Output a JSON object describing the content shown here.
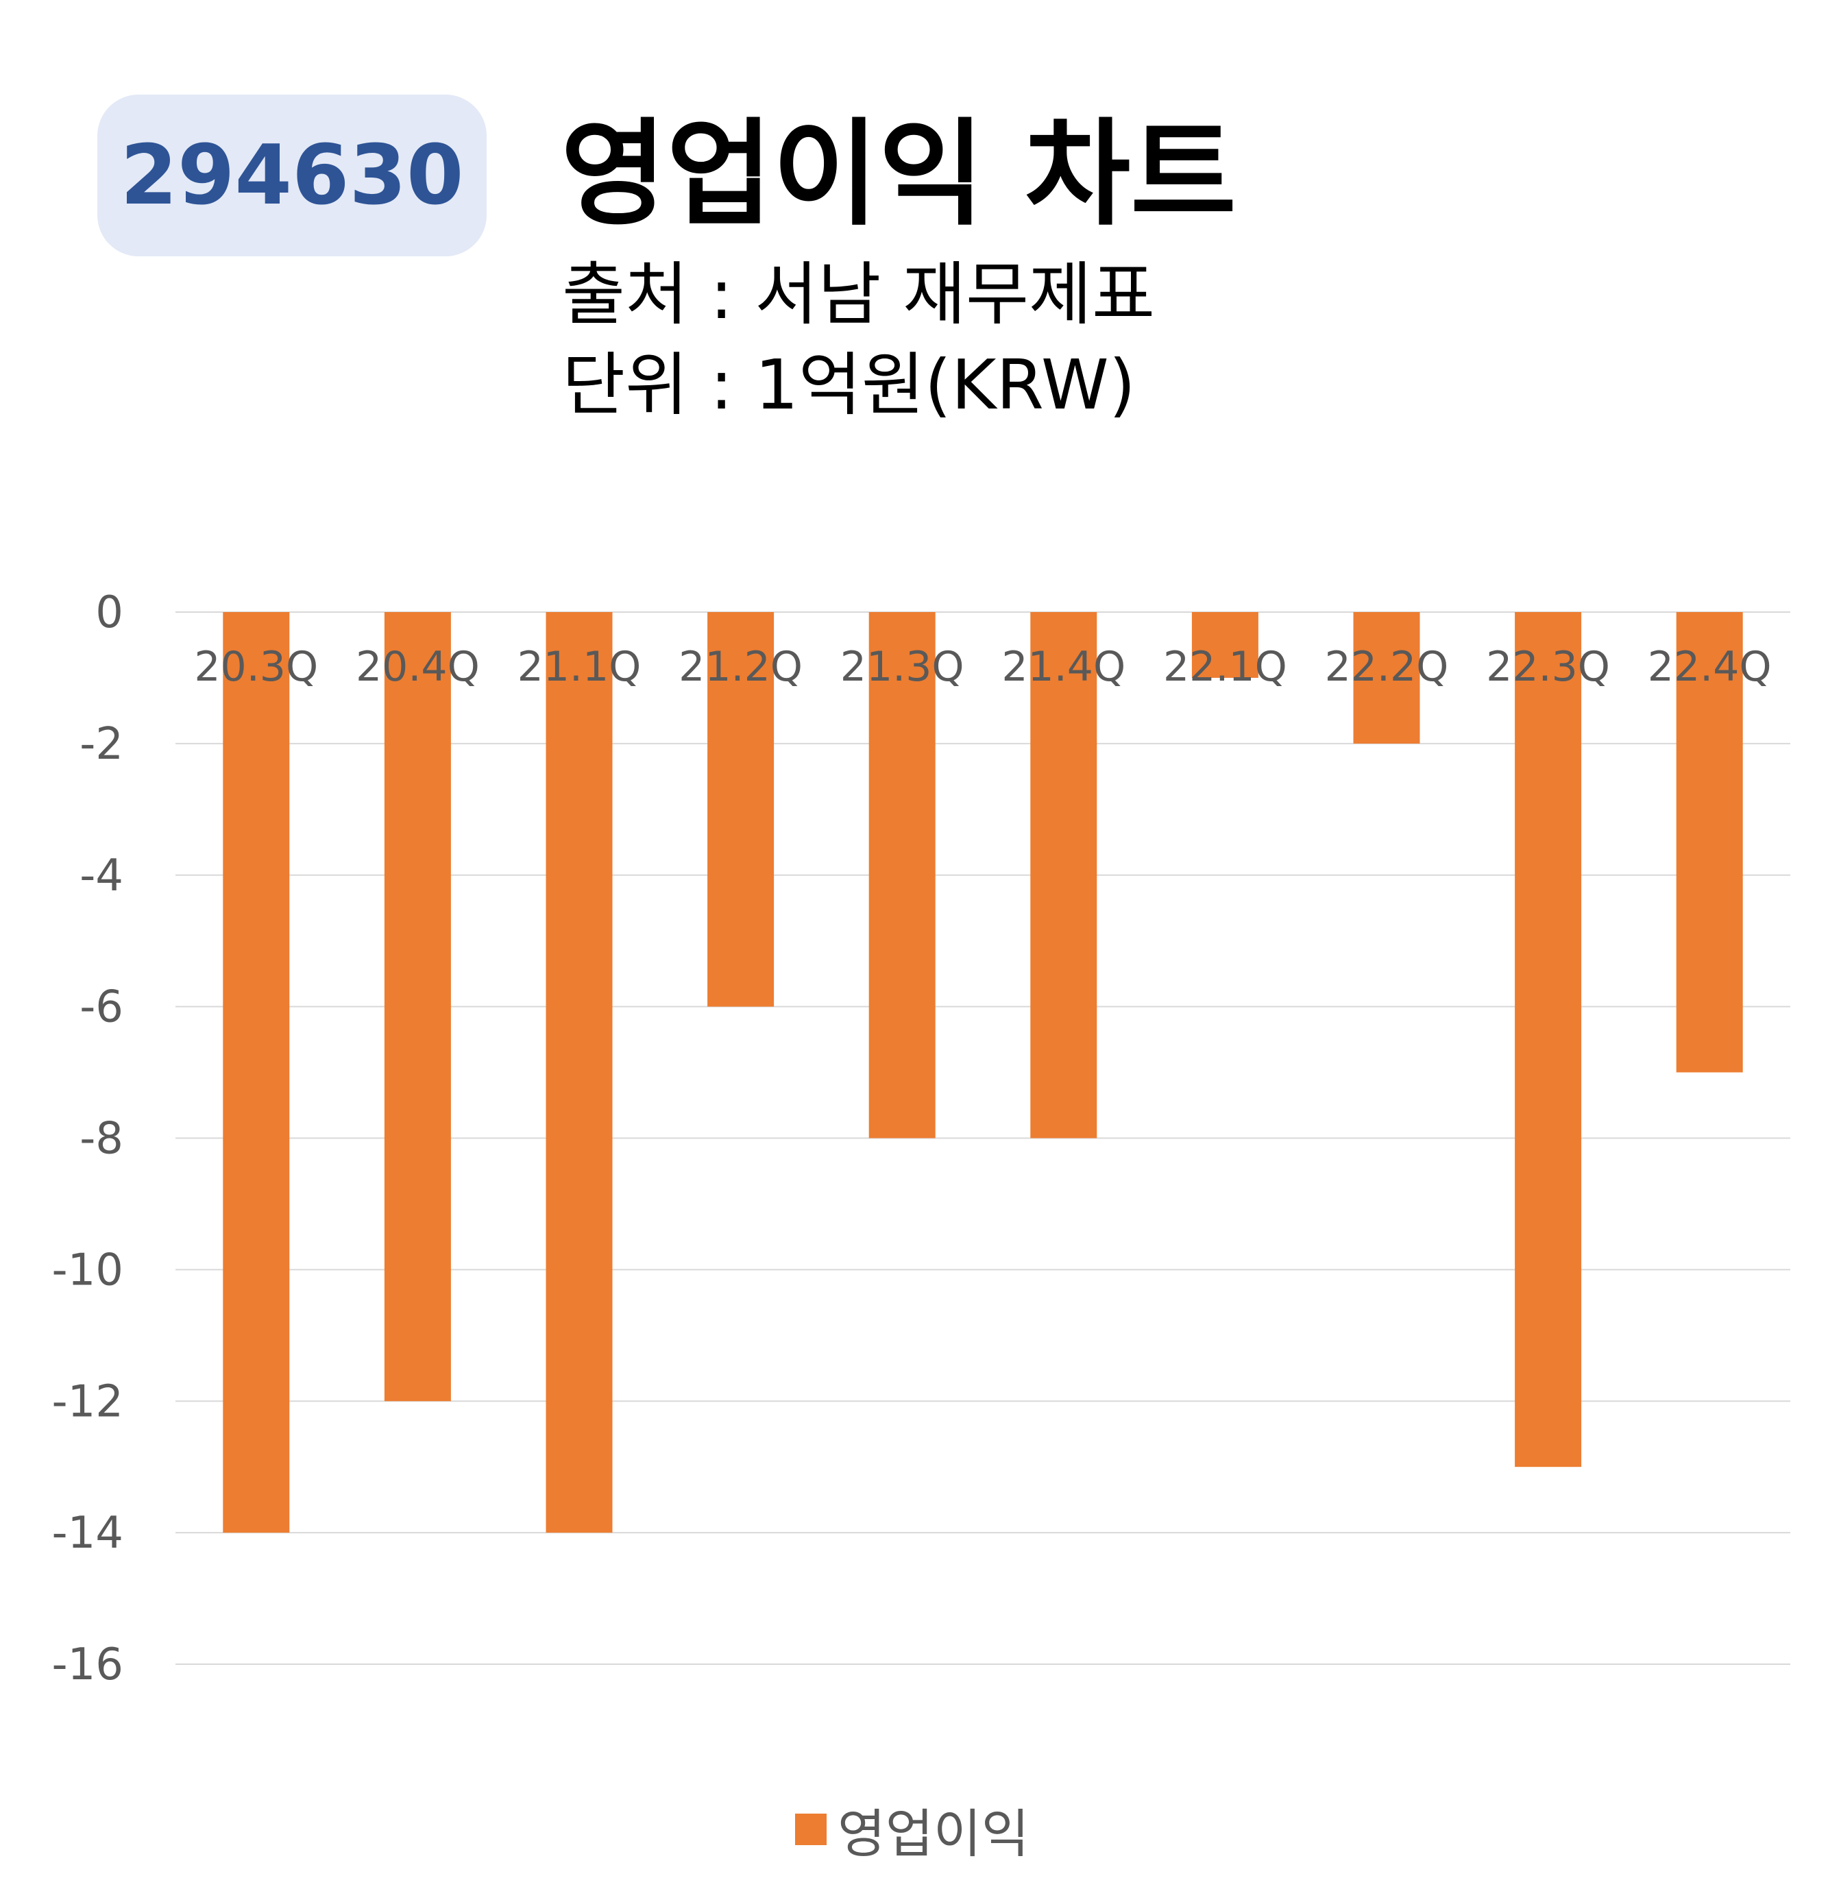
{
  "header": {
    "code": "294630",
    "title": "영업이익 차트",
    "source": "출처 : 서남 재무제표",
    "unit": "단위 : 1억원(KRW)"
  },
  "colors": {
    "bar": "#ed7d31",
    "badge_bg": "#e3e9f6",
    "badge_text": "#2e5496",
    "grid": "#d9d9d9",
    "tick_text": "#595959"
  },
  "chart_data": {
    "type": "bar",
    "categories": [
      "20.3Q",
      "20.4Q",
      "21.1Q",
      "21.2Q",
      "21.3Q",
      "21.4Q",
      "22.1Q",
      "22.2Q",
      "22.3Q",
      "22.4Q"
    ],
    "series": [
      {
        "name": "영업이익",
        "values": [
          -14,
          -12,
          -14,
          -6,
          -8,
          -8,
          -1,
          -2,
          -13,
          -7
        ]
      }
    ],
    "ylim": [
      -16,
      0
    ],
    "yticks": [
      0,
      -2,
      -4,
      -6,
      -8,
      -10,
      -12,
      -14,
      -16
    ],
    "grid": true,
    "legend_position": "bottom"
  }
}
